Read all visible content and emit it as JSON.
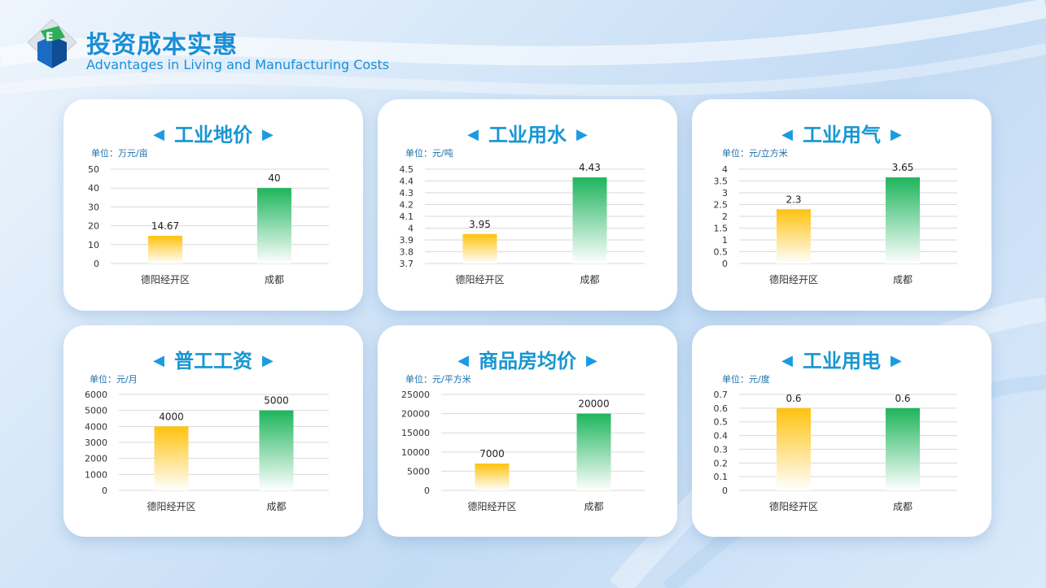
{
  "header": {
    "title": "投资成本实惠",
    "subtitle": "Advantages in Living and Manufacturing Costs"
  },
  "colors": {
    "accent": "#1a8fd8",
    "bar_dey_top": "#ffc20e",
    "bar_cd_top": "#1eb55c"
  },
  "chart_data": [
    {
      "type": "bar",
      "title": "工业地价",
      "unit": "单位：万元/亩",
      "categories": [
        "德阳经开区",
        "成都"
      ],
      "values": [
        14.67,
        40
      ],
      "labels": [
        "14.67",
        "40"
      ],
      "ylim": [
        0,
        50
      ],
      "yticks": [
        0,
        10,
        20,
        30,
        40,
        50
      ],
      "ytick_labels": [
        "0",
        "10",
        "20",
        "30",
        "40",
        "50"
      ]
    },
    {
      "type": "bar",
      "title": "工业用水",
      "unit": "单位：元/吨",
      "categories": [
        "德阳经开区",
        "成都"
      ],
      "values": [
        3.95,
        4.43
      ],
      "labels": [
        "3.95",
        "4.43"
      ],
      "ylim": [
        3.7,
        4.5
      ],
      "yticks": [
        3.7,
        3.8,
        3.9,
        4.0,
        4.1,
        4.2,
        4.3,
        4.4,
        4.5
      ],
      "ytick_labels": [
        "3.7",
        "3.8",
        "3.9",
        "4",
        "4.1",
        "4.2",
        "4.3",
        "4.4",
        "4.5"
      ]
    },
    {
      "type": "bar",
      "title": "工业用气",
      "unit": "单位：元/立方米",
      "categories": [
        "德阳经开区",
        "成都"
      ],
      "values": [
        2.3,
        3.65
      ],
      "labels": [
        "2.3",
        "3.65"
      ],
      "ylim": [
        0,
        4
      ],
      "yticks": [
        0,
        0.5,
        1,
        1.5,
        2,
        2.5,
        3,
        3.5,
        4
      ],
      "ytick_labels": [
        "0",
        "0.5",
        "1",
        "1.5",
        "2",
        "2.5",
        "3",
        "3.5",
        "4"
      ]
    },
    {
      "type": "bar",
      "title": "普工工资",
      "unit": "单位：元/月",
      "categories": [
        "德阳经开区",
        "成都"
      ],
      "values": [
        4000,
        5000
      ],
      "labels": [
        "4000",
        "5000"
      ],
      "ylim": [
        0,
        6000
      ],
      "yticks": [
        0,
        1000,
        2000,
        3000,
        4000,
        5000,
        6000
      ],
      "ytick_labels": [
        "0",
        "1000",
        "2000",
        "3000",
        "4000",
        "5000",
        "6000"
      ]
    },
    {
      "type": "bar",
      "title": "商品房均价",
      "unit": "单位：元/平方米",
      "categories": [
        "德阳经开区",
        "成都"
      ],
      "values": [
        7000,
        20000
      ],
      "labels": [
        "7000",
        "20000"
      ],
      "ylim": [
        0,
        25000
      ],
      "yticks": [
        0,
        5000,
        10000,
        15000,
        20000,
        25000
      ],
      "ytick_labels": [
        "0",
        "5000",
        "10000",
        "15000",
        "20000",
        "25000"
      ]
    },
    {
      "type": "bar",
      "title": "工业用电",
      "unit": "单位：元/度",
      "categories": [
        "德阳经开区",
        "成都"
      ],
      "values": [
        0.6,
        0.6
      ],
      "labels": [
        "0.6",
        "0.6"
      ],
      "ylim": [
        0,
        0.7
      ],
      "yticks": [
        0,
        0.1,
        0.2,
        0.3,
        0.4,
        0.5,
        0.6,
        0.7
      ],
      "ytick_labels": [
        "0",
        "0.1",
        "0.2",
        "0.3",
        "0.4",
        "0.5",
        "0.6",
        "0.7"
      ]
    }
  ]
}
